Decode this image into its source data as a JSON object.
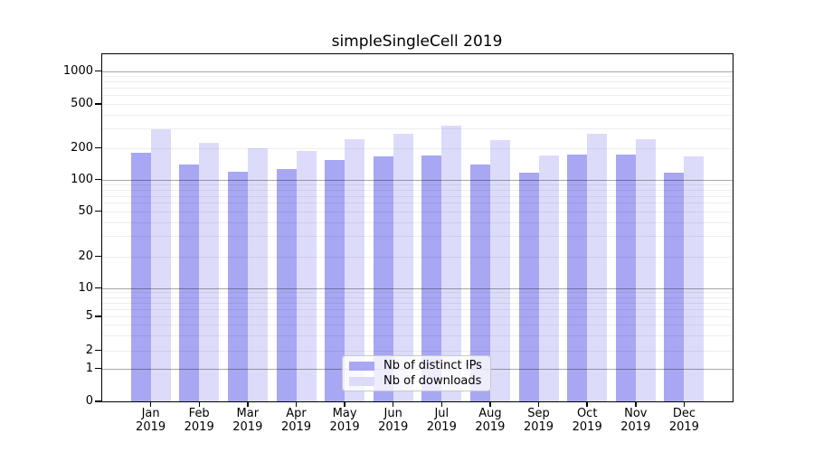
{
  "chart_data": {
    "type": "bar",
    "title": "simpleSingleCell 2019",
    "categories": [
      "Jan",
      "Feb",
      "Mar",
      "Apr",
      "May",
      "Jun",
      "Jul",
      "Aug",
      "Sep",
      "Oct",
      "Nov",
      "Dec"
    ],
    "year_label": "2019",
    "series": [
      {
        "name": "Nb of distinct IPs",
        "color": "#a7a7f3",
        "values": [
          178,
          140,
          118,
          126,
          154,
          167,
          169,
          139,
          116,
          173,
          173,
          116
        ]
      },
      {
        "name": "Nb of downloads",
        "color": "#dcdcfa",
        "values": [
          293,
          221,
          200,
          188,
          238,
          270,
          316,
          236,
          169,
          267,
          239,
          165
        ]
      }
    ],
    "yticks": [
      0,
      1,
      2,
      5,
      10,
      20,
      50,
      100,
      200,
      500,
      1000
    ],
    "yscale": "symlog",
    "ylim": [
      0,
      1400
    ],
    "grid": true,
    "legend_position": "lower center",
    "colors": {
      "axis": "#000000",
      "major_grid": "#aaaaaa",
      "minor_grid": "#efefef"
    }
  }
}
